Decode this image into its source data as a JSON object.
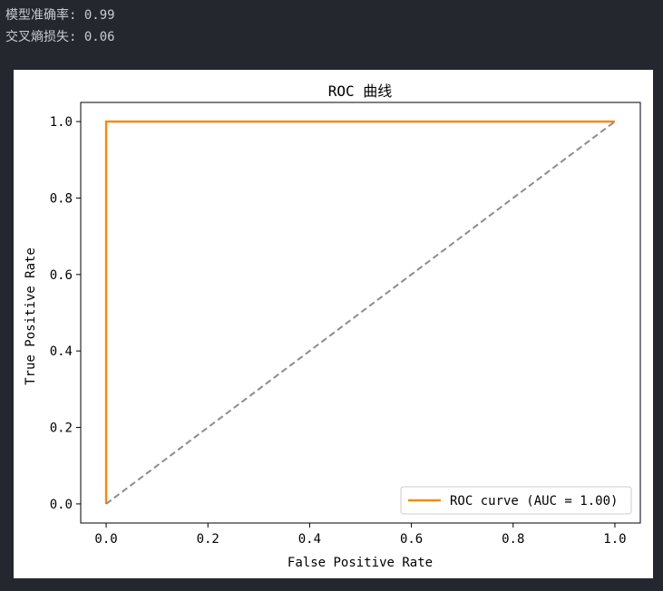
{
  "output": {
    "accuracy_line": "模型准确率: 0.99",
    "loss_line": "交叉熵损失: 0.06"
  },
  "chart_data": {
    "type": "line",
    "title": "ROC 曲线",
    "xlabel": "False Positive Rate",
    "ylabel": "True Positive Rate",
    "xlim": [
      -0.05,
      1.05
    ],
    "ylim": [
      -0.05,
      1.05
    ],
    "xticks": [
      0.0,
      0.2,
      0.4,
      0.6,
      0.8,
      1.0
    ],
    "xtick_labels": [
      "0.0",
      "0.2",
      "0.4",
      "0.6",
      "0.8",
      "1.0"
    ],
    "yticks": [
      0.0,
      0.2,
      0.4,
      0.6,
      0.8,
      1.0
    ],
    "ytick_labels": [
      "0.0",
      "0.2",
      "0.4",
      "0.6",
      "0.8",
      "1.0"
    ],
    "grid": false,
    "legend_position": "lower-right",
    "series": [
      {
        "name": "ROC curve (AUC = 1.00)",
        "x": [
          0.0,
          0.0,
          1.0
        ],
        "y": [
          0.0,
          1.0,
          1.0
        ],
        "color": "#f28c14",
        "style": "solid"
      },
      {
        "x": [
          0.0,
          1.0
        ],
        "y": [
          0.0,
          1.0
        ],
        "color": "#8c8c8c",
        "style": "dashed"
      }
    ]
  }
}
